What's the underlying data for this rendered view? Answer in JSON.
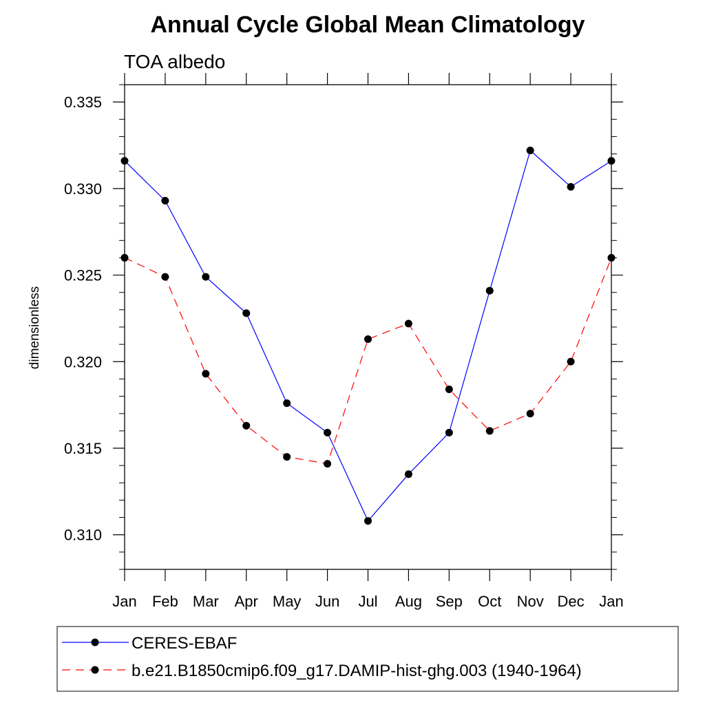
{
  "chart_data": {
    "type": "line",
    "title": "Annual Cycle Global Mean Climatology",
    "subtitle": "TOA albedo",
    "xlabel": "",
    "ylabel": "dimensionless",
    "categories": [
      "Jan",
      "Feb",
      "Mar",
      "Apr",
      "May",
      "Jun",
      "Jul",
      "Aug",
      "Sep",
      "Oct",
      "Nov",
      "Dec",
      "Jan"
    ],
    "ylim": [
      0.308,
      0.336
    ],
    "yticks": [
      "0.310",
      "0.315",
      "0.320",
      "0.325",
      "0.330",
      "0.335"
    ],
    "grid": false,
    "legend_position": "bottom",
    "series": [
      {
        "name": "CERES-EBAF",
        "color": "#0000ff",
        "line_style": "solid",
        "marker": "filled-circle",
        "values": [
          0.3316,
          0.3293,
          0.3249,
          0.3228,
          0.3176,
          0.3159,
          0.3108,
          0.3135,
          0.3159,
          0.3241,
          0.3322,
          0.3301,
          0.3316
        ]
      },
      {
        "name": "b.e21.B1850cmip6.f09_g17.DAMIP-hist-ghg.003 (1940-1964)",
        "color": "#ff0000",
        "line_style": "dashed",
        "marker": "filled-circle",
        "values": [
          0.326,
          0.3249,
          0.3193,
          0.3163,
          0.3145,
          0.3141,
          0.3213,
          0.3222,
          0.3184,
          0.316,
          0.317,
          0.32,
          0.326
        ]
      }
    ]
  }
}
